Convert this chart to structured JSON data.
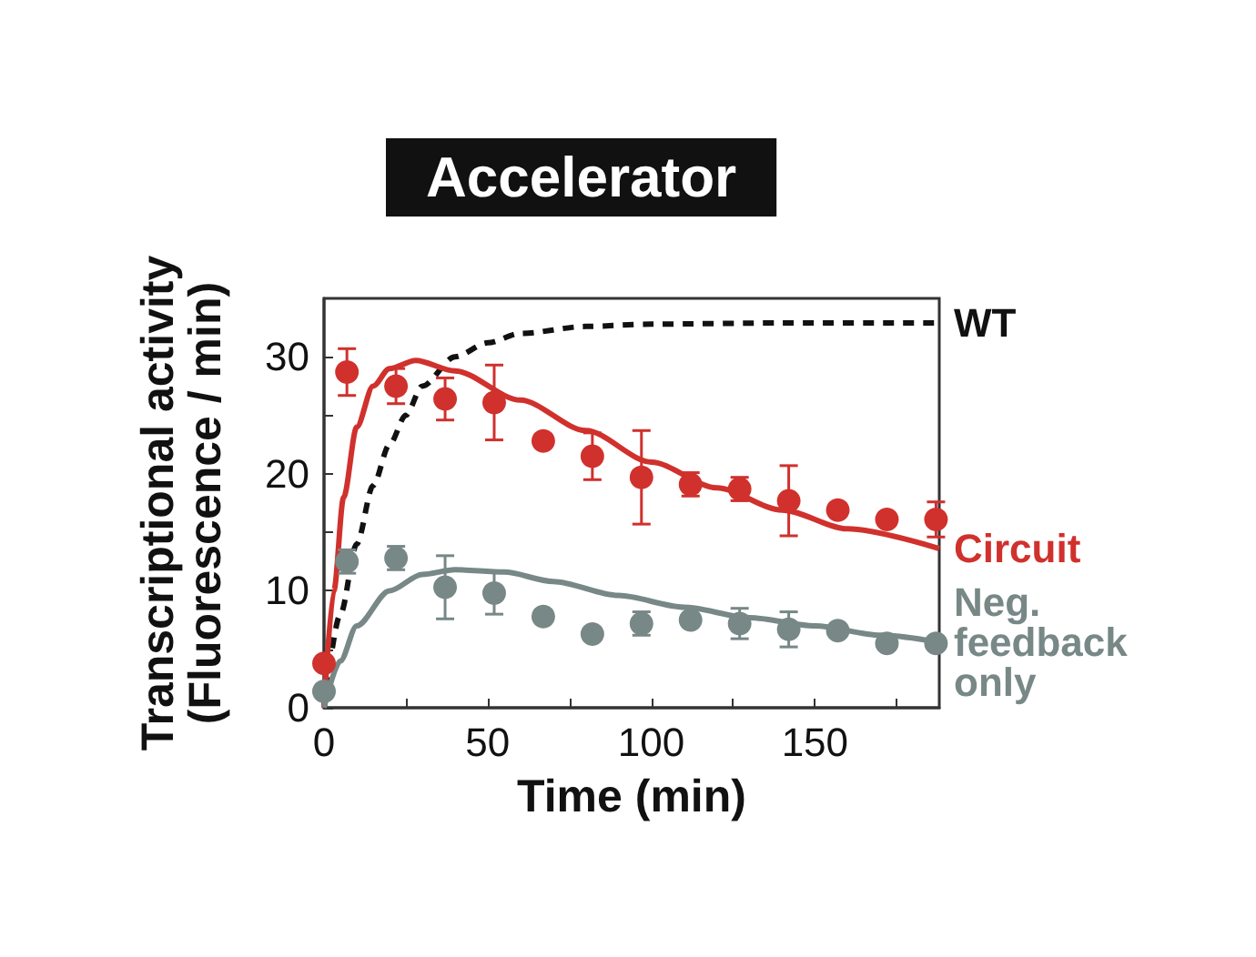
{
  "chart_data": {
    "type": "line",
    "title": "Accelerator",
    "xlabel": "Time (min)",
    "ylabel": "Transcriptional activity\n(Fluorescence / min)",
    "xlim": [
      0,
      188
    ],
    "ylim": [
      0,
      35
    ],
    "xticks": [
      0,
      {
        "value": 25,
        "label": null
      },
      50,
      {
        "value": 75,
        "label": null
      },
      100,
      {
        "value": 125,
        "label": null
      },
      150,
      {
        "value": 175,
        "label": null
      }
    ],
    "yticks": [
      0,
      {
        "value": 5,
        "label": null
      },
      10,
      {
        "value": 15,
        "label": null
      },
      20,
      {
        "value": 25,
        "label": null
      },
      30
    ],
    "series": [
      {
        "name": "WT",
        "color": "#111111",
        "line_style": "dashed",
        "marker": "none",
        "x": [
          0,
          5,
          10,
          15,
          20,
          25,
          30,
          40,
          50,
          60,
          80,
          100,
          140,
          188
        ],
        "values": [
          0,
          8,
          14,
          19,
          22.5,
          25,
          27.5,
          30,
          31.2,
          32,
          32.6,
          32.8,
          32.9,
          32.9
        ]
      },
      {
        "name": "Circuit",
        "color": "#d0312d",
        "marker": "none",
        "x": [
          0,
          3,
          6,
          10,
          15,
          20,
          28,
          40,
          60,
          80,
          100,
          120,
          140,
          160,
          188
        ],
        "values": [
          0,
          10,
          18,
          24,
          27.5,
          29,
          29.7,
          28.8,
          26.3,
          23.7,
          21,
          18.8,
          16.9,
          15.3,
          13.6
        ]
      },
      {
        "type": "scatter",
        "color": "#d0312d",
        "marker": "circle",
        "x": [
          0,
          7,
          22,
          37,
          52,
          67,
          82,
          97,
          112,
          127,
          142,
          157,
          172,
          187
        ],
        "values": [
          3.8,
          28.7,
          27.5,
          26.4,
          26.1,
          22.8,
          21.5,
          19.7,
          19.1,
          18.7,
          17.7,
          16.9,
          16.1,
          16.1
        ],
        "errors": [
          null,
          2,
          1.5,
          1.8,
          3.2,
          null,
          2,
          4,
          1,
          1,
          3,
          null,
          null,
          1.5
        ]
      },
      {
        "name": "Neg.\nfeedback\nonly",
        "color": "#778886",
        "marker": "none",
        "x": [
          0,
          5,
          10,
          20,
          30,
          40,
          55,
          70,
          90,
          110,
          130,
          150,
          170,
          188
        ],
        "values": [
          0,
          4,
          7,
          10,
          11.4,
          11.8,
          11.6,
          10.8,
          9.6,
          8.6,
          7.7,
          7,
          6.2,
          5.6
        ]
      },
      {
        "type": "scatter",
        "color": "#778886",
        "marker": "circle",
        "x": [
          0,
          7,
          22,
          37,
          52,
          67,
          82,
          97,
          112,
          127,
          142,
          157,
          172,
          187
        ],
        "values": [
          1.4,
          12.5,
          12.8,
          10.3,
          9.8,
          7.8,
          6.3,
          7.2,
          7.5,
          7.2,
          6.7,
          6.6,
          5.5,
          5.5
        ],
        "errors": [
          null,
          1,
          1,
          2.7,
          1.8,
          null,
          null,
          1,
          null,
          1.3,
          1.5,
          null,
          null,
          null
        ]
      }
    ]
  }
}
